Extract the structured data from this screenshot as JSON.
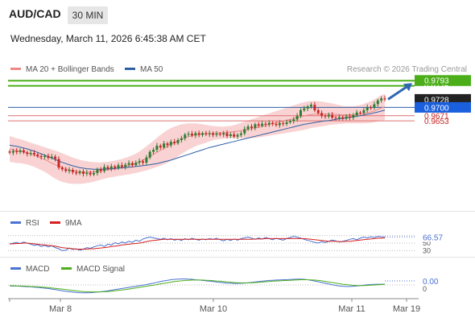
{
  "header": {
    "symbol": "AUD/CAD",
    "timeframe": "30 MIN",
    "datetime": "Wednesday, March 11, 2026 6:45:38 AM CET",
    "credit": "Research © 2026 Trading Central"
  },
  "colors": {
    "bull": "#2e7d32",
    "bear": "#c62828",
    "target": "#4caf1a",
    "ma50": "#2f5fa3",
    "bollinger_fill": "#f9d3d3",
    "ma20": "#ee8888",
    "support": "#e07070",
    "arrow": "#2f67b3"
  },
  "chart_data": [
    {
      "type": "candlestick",
      "name": "price",
      "legend": [
        {
          "label": "MA 20 + Bollinger Bands",
          "color": "#ee8888"
        },
        {
          "label": "MA 50",
          "color": "#2f5fa3"
        }
      ],
      "x_ticks": [
        "Mar 8",
        "Mar 10",
        "Mar 11",
        "Mar 19"
      ],
      "ylim": [
        0.935,
        0.9805
      ],
      "levels": [
        {
          "value": 0.9793,
          "label": "0.9793",
          "kind": "target"
        },
        {
          "value": 0.9775,
          "label": "0.9775",
          "kind": "target"
        },
        {
          "value": 0.9728,
          "label": "0.9728",
          "kind": "last"
        },
        {
          "value": 0.97,
          "label": "0.9700",
          "kind": "pivot"
        },
        {
          "value": 0.9671,
          "label": "0.9671",
          "kind": "support"
        },
        {
          "value": 0.9653,
          "label": "0.9653",
          "kind": "support"
        }
      ],
      "close": [
        0.9542,
        0.9548,
        0.9544,
        0.955,
        0.9543,
        0.9538,
        0.9541,
        0.9536,
        0.953,
        0.9527,
        0.9531,
        0.9524,
        0.9528,
        0.952,
        0.949,
        0.9484,
        0.9478,
        0.9482,
        0.9474,
        0.947,
        0.9476,
        0.9468,
        0.9472,
        0.9466,
        0.9471,
        0.9484,
        0.9478,
        0.9492,
        0.9486,
        0.9494,
        0.9489,
        0.9498,
        0.9492,
        0.95,
        0.9506,
        0.9498,
        0.9507,
        0.9512,
        0.9507,
        0.9525,
        0.9545,
        0.9552,
        0.9566,
        0.956,
        0.9574,
        0.9568,
        0.958,
        0.9575,
        0.9586,
        0.9592,
        0.9605,
        0.9608,
        0.9602,
        0.961,
        0.9604,
        0.961,
        0.9606,
        0.9609,
        0.9604,
        0.9608,
        0.9605,
        0.961,
        0.96,
        0.9606,
        0.9598,
        0.9604,
        0.9609,
        0.9624,
        0.9633,
        0.9628,
        0.9641,
        0.9636,
        0.9643,
        0.964,
        0.9646,
        0.9642,
        0.9638,
        0.9645,
        0.9642,
        0.9648,
        0.9652,
        0.9658,
        0.967,
        0.969,
        0.9696,
        0.9703,
        0.9709,
        0.969,
        0.968,
        0.9671,
        0.9668,
        0.9674,
        0.9664,
        0.9662,
        0.9666,
        0.9661,
        0.9668,
        0.9664,
        0.9673,
        0.9682,
        0.968,
        0.969,
        0.97,
        0.9698,
        0.9711,
        0.9724,
        0.9731,
        0.9728
      ],
      "ma20": [
        0.9555,
        0.9552,
        0.9549,
        0.9547,
        0.9544,
        0.9541,
        0.9537,
        0.9533,
        0.9528,
        0.9523,
        0.9518,
        0.9512,
        0.9506,
        0.95,
        0.9495,
        0.949,
        0.9486,
        0.9482,
        0.9479,
        0.9477,
        0.9475,
        0.9474,
        0.9474,
        0.9474,
        0.9475,
        0.9476,
        0.9478,
        0.948,
        0.9482,
        0.9484,
        0.9486,
        0.9489,
        0.9491,
        0.9494,
        0.9497,
        0.9501,
        0.9505,
        0.951,
        0.9516,
        0.9522,
        0.9529,
        0.9536,
        0.9543,
        0.955,
        0.9557,
        0.9564,
        0.9571,
        0.9577,
        0.9583,
        0.9589,
        0.9594,
        0.9598,
        0.9601,
        0.9604,
        0.9606,
        0.9607,
        0.9608,
        0.9609,
        0.961,
        0.9611,
        0.9611,
        0.9612,
        0.9613,
        0.9614,
        0.9615,
        0.9617,
        0.9619,
        0.9621,
        0.9623,
        0.9626,
        0.9628,
        0.9631,
        0.9634,
        0.9637,
        0.964,
        0.9643,
        0.9646,
        0.9649,
        0.9652,
        0.9655,
        0.9658,
        0.9661,
        0.9664,
        0.9667,
        0.967,
        0.9673,
        0.9675,
        0.9676,
        0.9677,
        0.9677,
        0.9677,
        0.9677,
        0.9677,
        0.9676,
        0.9675,
        0.9674,
        0.9674,
        0.9674,
        0.9674,
        0.9675,
        0.9676,
        0.9678,
        0.9681,
        0.9684,
        0.9688,
        0.9693,
        0.9698,
        0.9702
      ],
      "ma50": [
        0.9568,
        0.9566,
        0.9564,
        0.9561,
        0.9558,
        0.9555,
        0.9551,
        0.9547,
        0.9543,
        0.9538,
        0.9533,
        0.9528,
        0.9523,
        0.9518,
        0.9513,
        0.9508,
        0.9504,
        0.95,
        0.9496,
        0.9493,
        0.949,
        0.9488,
        0.9486,
        0.9485,
        0.9484,
        0.9484,
        0.9484,
        0.9485,
        0.9485,
        0.9486,
        0.9487,
        0.9488,
        0.9489,
        0.949,
        0.9491,
        0.9492,
        0.9494,
        0.9495,
        0.9497,
        0.9498,
        0.95,
        0.9502,
        0.9504,
        0.9507,
        0.951,
        0.9513,
        0.9516,
        0.952,
        0.9524,
        0.9528,
        0.9532,
        0.9536,
        0.954,
        0.9544,
        0.9548,
        0.9552,
        0.9556,
        0.956,
        0.9563,
        0.9566,
        0.9569,
        0.9572,
        0.9575,
        0.9578,
        0.9581,
        0.9584,
        0.9587,
        0.959,
        0.9593,
        0.9596,
        0.9599,
        0.9602,
        0.9605,
        0.9608,
        0.9611,
        0.9614,
        0.9617,
        0.962,
        0.9623,
        0.9626,
        0.9629,
        0.9632,
        0.9635,
        0.9638,
        0.9641,
        0.9643,
        0.9645,
        0.9647,
        0.9649,
        0.9651,
        0.9653,
        0.9654,
        0.9656,
        0.9658,
        0.966,
        0.9661,
        0.9663,
        0.9665,
        0.9667,
        0.9669,
        0.9671,
        0.9673,
        0.9676,
        0.9678,
        0.9681,
        0.9684,
        0.9687,
        0.969
      ],
      "bb_width": [
        0.0045,
        0.0044,
        0.0043,
        0.0042,
        0.0041,
        0.004,
        0.004,
        0.004,
        0.0041,
        0.0042,
        0.0043,
        0.0045,
        0.0047,
        0.0049,
        0.005,
        0.005,
        0.0049,
        0.0048,
        0.0046,
        0.0044,
        0.0042,
        0.004,
        0.0038,
        0.0036,
        0.0034,
        0.0032,
        0.003,
        0.0029,
        0.0028,
        0.0028,
        0.0028,
        0.0028,
        0.0029,
        0.003,
        0.0031,
        0.0032,
        0.0034,
        0.0036,
        0.0039,
        0.0042,
        0.0045,
        0.0048,
        0.0051,
        0.0054,
        0.0056,
        0.0057,
        0.0057,
        0.0056,
        0.0054,
        0.0052,
        0.0049,
        0.0046,
        0.0043,
        0.004,
        0.0037,
        0.0034,
        0.0031,
        0.0028,
        0.0025,
        0.0023,
        0.0022,
        0.0021,
        0.0021,
        0.0022,
        0.0023,
        0.0025,
        0.0027,
        0.0029,
        0.0031,
        0.0033,
        0.0035,
        0.0036,
        0.0037,
        0.0038,
        0.0039,
        0.004,
        0.0041,
        0.0042,
        0.0043,
        0.0044,
        0.0045,
        0.0046,
        0.0047,
        0.0048,
        0.0048,
        0.0048,
        0.0047,
        0.0046,
        0.0045,
        0.0043,
        0.0041,
        0.0039,
        0.0037,
        0.0035,
        0.0033,
        0.0031,
        0.003,
        0.003,
        0.003,
        0.0031,
        0.0032,
        0.0034,
        0.0036,
        0.0038,
        0.004,
        0.0042,
        0.0044,
        0.0046
      ],
      "forecast": {
        "from": 0.9728,
        "to": 0.9793
      }
    },
    {
      "type": "line",
      "name": "RSI",
      "legend": [
        {
          "label": "RSI",
          "color": "#4a72d0"
        },
        {
          "label": "9MA",
          "color": "#d62020"
        }
      ],
      "ylim": [
        20,
        80
      ],
      "levels": [
        70,
        50,
        30
      ],
      "level_labels": [
        "70",
        "50",
        "30"
      ],
      "last_value": "66.57",
      "series": [
        {
          "name": "RSI",
          "values": [
            47,
            50,
            52,
            49,
            53,
            50,
            47,
            44,
            46,
            41,
            44,
            40,
            43,
            38,
            35,
            30,
            31,
            37,
            33,
            35,
            31,
            34,
            38,
            36,
            40,
            43,
            45,
            41,
            47,
            45,
            51,
            48,
            53,
            50,
            55,
            52,
            58,
            55,
            61,
            64,
            66,
            64,
            62,
            60,
            63,
            59,
            62,
            58,
            60,
            57,
            62,
            59,
            63,
            60,
            58,
            61,
            59,
            62,
            60,
            63,
            59,
            56,
            60,
            57,
            61,
            58,
            62,
            64,
            66,
            63,
            60,
            64,
            61,
            65,
            62,
            59,
            63,
            60,
            58,
            62,
            65,
            68,
            66,
            63,
            60,
            57,
            55,
            52,
            50,
            54,
            51,
            55,
            58,
            56,
            53,
            55,
            57,
            60,
            62,
            59,
            63,
            66,
            64,
            67,
            65,
            68,
            67,
            66.57
          ]
        },
        {
          "name": "9MA",
          "values": [
            48,
            48,
            49,
            49,
            50,
            50,
            49,
            48,
            47,
            46,
            45,
            44,
            43,
            42,
            40,
            38,
            37,
            36,
            35,
            34,
            34,
            34,
            34,
            35,
            35,
            36,
            37,
            38,
            39,
            41,
            42,
            43,
            45,
            46,
            47,
            48,
            49,
            50,
            52,
            54,
            56,
            57,
            58,
            59,
            60,
            60,
            60,
            60,
            60,
            60,
            60,
            60,
            60,
            60,
            60,
            60,
            60,
            60,
            60,
            60,
            60,
            60,
            60,
            60,
            60,
            60,
            60,
            60,
            60,
            60,
            61,
            61,
            61,
            62,
            62,
            62,
            62,
            62,
            62,
            62,
            62,
            62,
            62,
            62,
            62,
            61,
            60,
            59,
            58,
            57,
            56,
            55,
            55,
            55,
            54,
            54,
            55,
            55,
            56,
            57,
            58,
            59,
            60,
            61,
            62,
            63,
            63,
            64
          ]
        }
      ]
    },
    {
      "type": "line",
      "name": "MACD",
      "legend": [
        {
          "label": "MACD",
          "color": "#4a72d0"
        },
        {
          "label": "MACD Signal",
          "color": "#4caf1a"
        }
      ],
      "level_label": "0",
      "last_value": "0.00",
      "ylim": [
        -0.006,
        0.006
      ],
      "series": [
        {
          "name": "MACD",
          "values": [
            -0.0005,
            -0.0006,
            -0.0006,
            -0.0007,
            -0.0008,
            -0.0009,
            -0.001,
            -0.0012,
            -0.0013,
            -0.0015,
            -0.0017,
            -0.0019,
            -0.0022,
            -0.0025,
            -0.0028,
            -0.0031,
            -0.0034,
            -0.0036,
            -0.0038,
            -0.004,
            -0.0041,
            -0.0042,
            -0.0042,
            -0.0041,
            -0.004,
            -0.0038,
            -0.0036,
            -0.0034,
            -0.0031,
            -0.0028,
            -0.0025,
            -0.0022,
            -0.0019,
            -0.0016,
            -0.0013,
            -0.001,
            -0.0007,
            -0.0004,
            -0.0001,
            0.0002,
            0.0006,
            0.001,
            0.0014,
            0.0018,
            0.0022,
            0.0025,
            0.0028,
            0.003,
            0.0031,
            0.0032,
            0.0032,
            0.0031,
            0.003,
            0.0028,
            0.0026,
            0.0024,
            0.0022,
            0.002,
            0.0018,
            0.0016,
            0.0014,
            0.0012,
            0.001,
            0.0009,
            0.0008,
            0.0008,
            0.0009,
            0.001,
            0.0012,
            0.0014,
            0.0016,
            0.0018,
            0.002,
            0.0022,
            0.0024,
            0.0025,
            0.0026,
            0.0027,
            0.0028,
            0.0028,
            0.0029,
            0.003,
            0.0031,
            0.0031,
            0.003,
            0.0028,
            0.0025,
            0.0021,
            0.0017,
            0.0013,
            0.0009,
            0.0005,
            0.0001,
            -0.0002,
            -0.0005,
            -0.0007,
            -0.0008,
            -0.0008,
            -0.0007,
            -0.0005,
            -0.0003,
            -0.0001,
            0.0001,
            0.0002,
            0.0003,
            0.0004,
            0.0004,
            0.0004
          ]
        },
        {
          "name": "MACD Signal",
          "values": [
            -0.0004,
            -0.0004,
            -0.0005,
            -0.0005,
            -0.0006,
            -0.0007,
            -0.0008,
            -0.0009,
            -0.001,
            -0.0011,
            -0.0013,
            -0.0014,
            -0.0016,
            -0.0018,
            -0.002,
            -0.0022,
            -0.0025,
            -0.0027,
            -0.0029,
            -0.0031,
            -0.0033,
            -0.0035,
            -0.0036,
            -0.0037,
            -0.0037,
            -0.0037,
            -0.0037,
            -0.0036,
            -0.0035,
            -0.0033,
            -0.0031,
            -0.0029,
            -0.0027,
            -0.0025,
            -0.0022,
            -0.0019,
            -0.0016,
            -0.0013,
            -0.001,
            -0.0007,
            -0.0004,
            -0.0001,
            0.0002,
            0.0006,
            0.0009,
            0.0012,
            0.0015,
            0.0018,
            0.002,
            0.0022,
            0.0024,
            0.0025,
            0.0026,
            0.0026,
            0.0026,
            0.0026,
            0.0025,
            0.0024,
            0.0023,
            0.0021,
            0.002,
            0.0018,
            0.0016,
            0.0015,
            0.0013,
            0.0012,
            0.0011,
            0.0011,
            0.0011,
            0.0012,
            0.0013,
            0.0014,
            0.0015,
            0.0017,
            0.0018,
            0.002,
            0.0021,
            0.0022,
            0.0023,
            0.0024,
            0.0025,
            0.0026,
            0.0027,
            0.0028,
            0.0028,
            0.0028,
            0.0027,
            0.0026,
            0.0024,
            0.0022,
            0.0019,
            0.0016,
            0.0013,
            0.001,
            0.0007,
            0.0004,
            0.0002,
            0.0,
            -0.0002,
            -0.0003,
            -0.0003,
            -0.0003,
            -0.0002,
            -0.0001,
            0.0,
            0.0001,
            0.0002,
            0.0003
          ]
        }
      ]
    }
  ]
}
